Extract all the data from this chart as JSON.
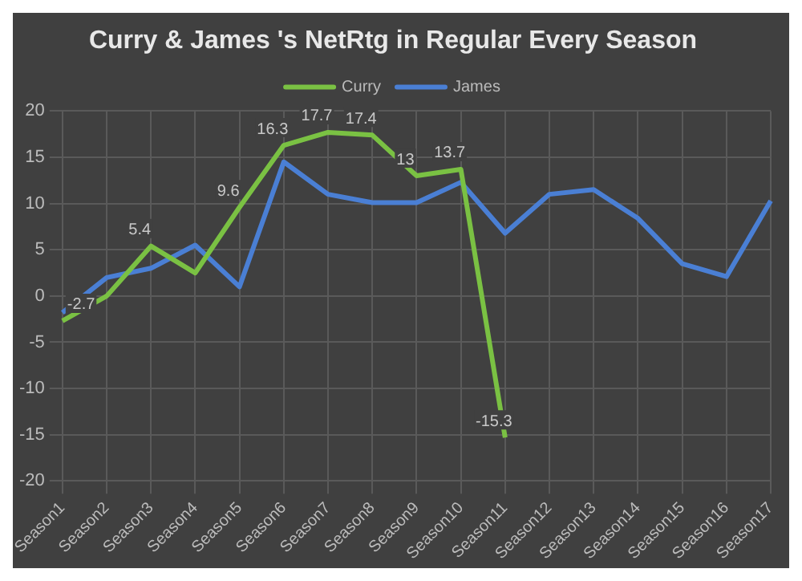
{
  "chart_data": {
    "type": "line",
    "title": "Curry & James 's NetRtg in Regular Every Season",
    "categories": [
      "Season1",
      "Season2",
      "Season3",
      "Season4",
      "Season5",
      "Season6",
      "Season7",
      "Season8",
      "Season9",
      "Season10",
      "Season11",
      "Season12",
      "Season13",
      "Season14",
      "Season15",
      "Season16",
      "Season17"
    ],
    "series": [
      {
        "name": "Curry",
        "color": "#7ac143",
        "values": [
          -2.7,
          0,
          5.4,
          2.5,
          9.6,
          16.3,
          17.7,
          17.4,
          13,
          13.7,
          -15.3,
          null,
          null,
          null,
          null,
          null,
          null
        ],
        "value_labels": [
          "-2.7",
          null,
          "5.4",
          null,
          "9.6",
          "16.3",
          "17.7",
          "17.4",
          "13",
          "13.7",
          "-15.3",
          null,
          null,
          null,
          null,
          null,
          null
        ]
      },
      {
        "name": "James",
        "color": "#4a7fd4",
        "values": [
          -1.8,
          2,
          3,
          5.5,
          1,
          14.5,
          11,
          10.1,
          10.1,
          12.3,
          6.8,
          11,
          11.5,
          8.4,
          3.5,
          2.1,
          10.3
        ]
      }
    ],
    "ylim": [
      -20,
      20
    ],
    "yticks": [
      -20,
      -15,
      -10,
      -5,
      0,
      5,
      10,
      15,
      20
    ],
    "grid": true,
    "legend": "top",
    "marker": "none",
    "line_style": "solid"
  }
}
